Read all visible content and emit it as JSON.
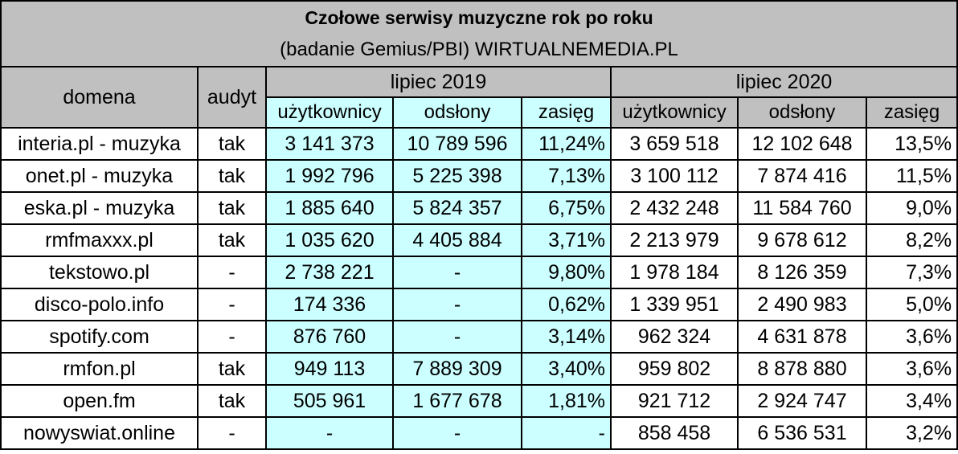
{
  "title": "Czołowe serwisy muzyczne rok po roku",
  "subtitle": "(badanie Gemius/PBI) WIRTUALNEMEDIA.PL",
  "headers": {
    "domena": "domena",
    "audyt": "audyt",
    "period_2019": "lipiec 2019",
    "period_2020": "lipiec 2020",
    "users": "użytkownicy",
    "views": "odsłony",
    "reach": "zasięg"
  },
  "rows": [
    {
      "domena": "interia.pl - muzyka",
      "audyt": "tak",
      "u2019": "3 141 373",
      "v2019": "10 789 596",
      "r2019": "11,24%",
      "u2020": "3 659 518",
      "v2020": "12 102 648",
      "r2020": "13,5%"
    },
    {
      "domena": "onet.pl - muzyka",
      "audyt": "tak",
      "u2019": "1 992 796",
      "v2019": "5 225 398",
      "r2019": "7,13%",
      "u2020": "3 100 112",
      "v2020": "7 874 416",
      "r2020": "11,5%"
    },
    {
      "domena": "eska.pl - muzyka",
      "audyt": "tak",
      "u2019": "1 885 640",
      "v2019": "5 824 357",
      "r2019": "6,75%",
      "u2020": "2 432 248",
      "v2020": "11 584 760",
      "r2020": "9,0%"
    },
    {
      "domena": "rmfmaxxx.pl",
      "audyt": "tak",
      "u2019": "1 035 620",
      "v2019": "4 405 884",
      "r2019": "3,71%",
      "u2020": "2 213 979",
      "v2020": "9 678 612",
      "r2020": "8,2%"
    },
    {
      "domena": "tekstowo.pl",
      "audyt": "-",
      "u2019": "2 738 221",
      "v2019": "-",
      "r2019": "9,80%",
      "u2020": "1 978 184",
      "v2020": "8 126 359",
      "r2020": "7,3%"
    },
    {
      "domena": "disco-polo.info",
      "audyt": "-",
      "u2019": "174 336",
      "v2019": "-",
      "r2019": "0,62%",
      "u2020": "1 339 951",
      "v2020": "2 490 983",
      "r2020": "5,0%"
    },
    {
      "domena": "spotify.com",
      "audyt": "-",
      "u2019": "876 760",
      "v2019": "-",
      "r2019": "3,14%",
      "u2020": "962 324",
      "v2020": "4 631 878",
      "r2020": "3,6%"
    },
    {
      "domena": "rmfon.pl",
      "audyt": "tak",
      "u2019": "949 113",
      "v2019": "7 889 309",
      "r2019": "3,40%",
      "u2020": "959 802",
      "v2020": "8 878 880",
      "r2020": "3,6%"
    },
    {
      "domena": "open.fm",
      "audyt": "tak",
      "u2019": "505 961",
      "v2019": "1 677 678",
      "r2019": "1,81%",
      "u2020": "921 712",
      "v2020": "2 924 747",
      "r2020": "3,4%"
    },
    {
      "domena": "nowyswiat.online",
      "audyt": "-",
      "u2019": "-",
      "v2019": "-",
      "r2019": "-",
      "u2020": "858 458",
      "v2020": "6 536 531",
      "r2020": "3,2%"
    }
  ]
}
